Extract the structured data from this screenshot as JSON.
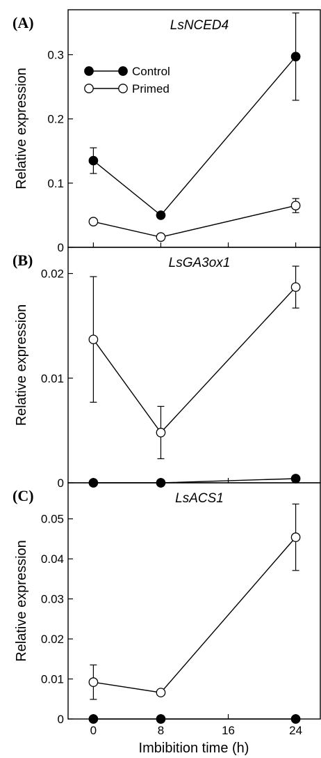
{
  "figure": {
    "xlabel": "Imbibition time (h)",
    "x_ticks": [
      "0",
      "8",
      "16",
      "24"
    ]
  },
  "legend": {
    "items": [
      {
        "label": "Control",
        "marker": "filled-circle"
      },
      {
        "label": "Primed",
        "marker": "open-circle"
      }
    ]
  },
  "chart_data": [
    {
      "type": "line",
      "panel_label": "(A)",
      "title": "LsNCED4",
      "xlabel": "",
      "ylabel": "Relative expression",
      "xlim": [
        -3,
        27
      ],
      "ylim": [
        0,
        0.37
      ],
      "y_ticks": [
        0,
        0.1,
        0.2,
        0.3
      ],
      "y_tick_labels": [
        "0",
        "0.1",
        "0.2",
        "0.3"
      ],
      "x": [
        0,
        8,
        24
      ],
      "series": [
        {
          "name": "Control",
          "marker": "filled",
          "values": [
            0.135,
            0.05,
            0.297
          ],
          "errors": [
            0.02,
            0.004,
            0.068
          ]
        },
        {
          "name": "Primed",
          "marker": "open",
          "values": [
            0.04,
            0.016,
            0.065
          ],
          "errors": [
            0.003,
            0.003,
            0.011
          ]
        }
      ]
    },
    {
      "type": "line",
      "panel_label": "(B)",
      "title": "LsGA3ox1",
      "xlabel": "",
      "ylabel": "Relative expression",
      "xlim": [
        -3,
        27
      ],
      "ylim": [
        0,
        0.0225
      ],
      "y_ticks": [
        0,
        0.01,
        0.02
      ],
      "y_tick_labels": [
        "0",
        "0.01",
        "0.02"
      ],
      "x": [
        0,
        8,
        24
      ],
      "series": [
        {
          "name": "Control",
          "marker": "filled",
          "values": [
            0.0,
            0.0,
            0.0004
          ],
          "errors": [
            0,
            0,
            0
          ]
        },
        {
          "name": "Primed",
          "marker": "open",
          "values": [
            0.0137,
            0.0048,
            0.0187
          ],
          "errors": [
            0.006,
            0.0025,
            0.002
          ]
        }
      ]
    },
    {
      "type": "line",
      "panel_label": "(C)",
      "title": "LsACS1",
      "xlabel": "Imbibition time (h)",
      "ylabel": "Relative expression",
      "xlim": [
        -3,
        27
      ],
      "ylim": [
        0,
        0.059
      ],
      "y_ticks": [
        0,
        0.01,
        0.02,
        0.03,
        0.04,
        0.05
      ],
      "y_tick_labels": [
        "0",
        "0.01",
        "0.02",
        "0.03",
        "0.04",
        "0.05"
      ],
      "x": [
        0,
        8,
        24
      ],
      "series": [
        {
          "name": "Control",
          "marker": "filled",
          "values": [
            0.0,
            0.0,
            0.0
          ],
          "errors": [
            0,
            0,
            0
          ]
        },
        {
          "name": "Primed",
          "marker": "open",
          "values": [
            0.0092,
            0.0066,
            0.0454
          ],
          "errors": [
            0.0043,
            0.0,
            0.0083
          ]
        }
      ]
    }
  ]
}
